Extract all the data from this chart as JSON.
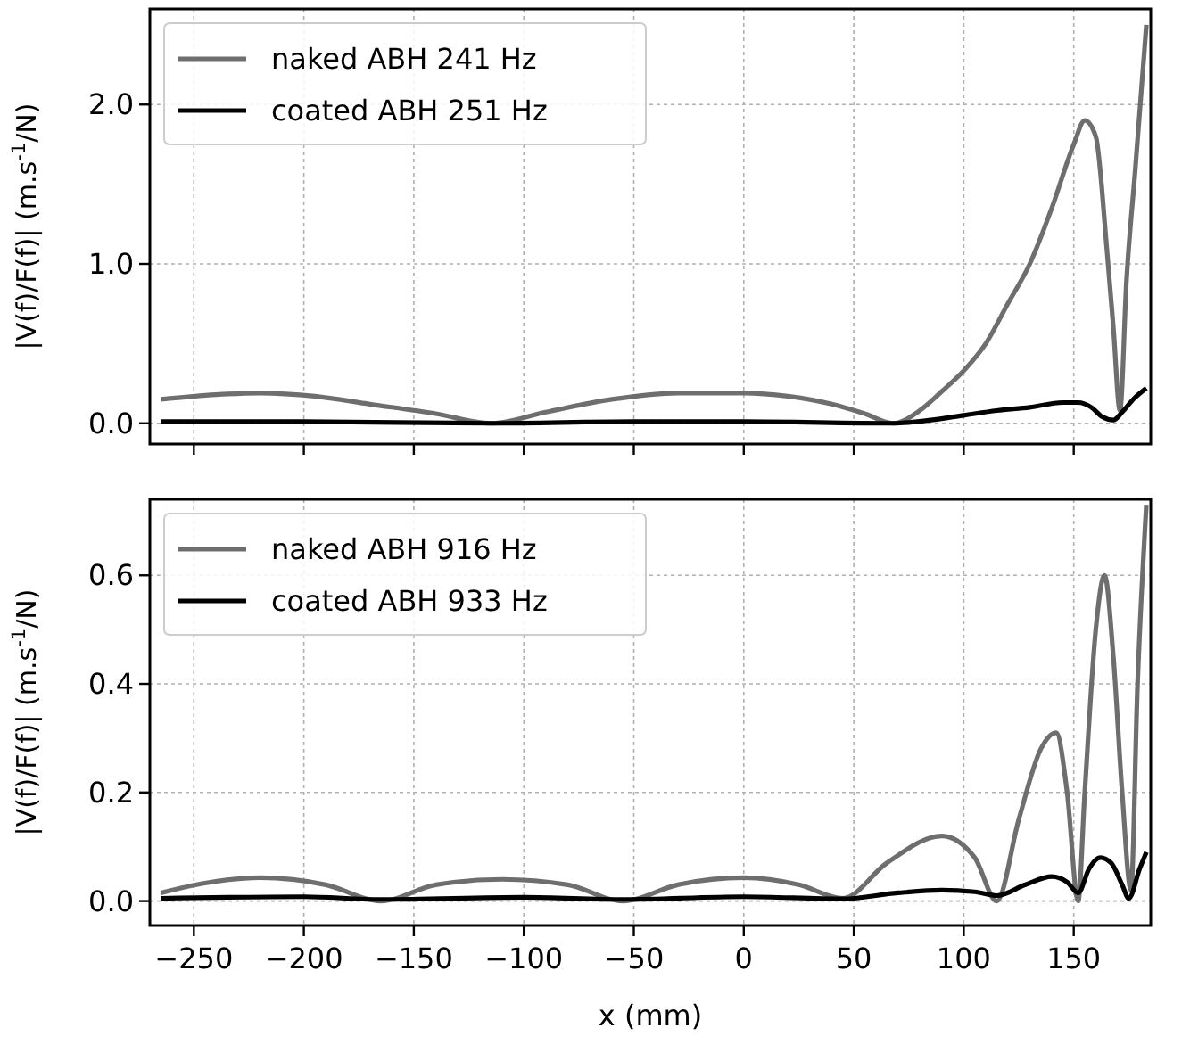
{
  "chart_data": [
    {
      "type": "line",
      "ylabel": "|V(f)/F(f)| (m.s$^{-1}$/N)",
      "xlim": [
        -270,
        185
      ],
      "ylim": [
        -0.13,
        2.6
      ],
      "xticks": [
        {
          "value": -250,
          "label": null
        },
        {
          "value": -200,
          "label": null
        },
        {
          "value": -150,
          "label": null
        },
        {
          "value": -100,
          "label": null
        },
        {
          "value": -50,
          "label": null
        },
        {
          "value": 0,
          "label": null
        },
        {
          "value": 50,
          "label": null
        },
        {
          "value": 100,
          "label": null
        },
        {
          "value": 150,
          "label": null
        }
      ],
      "yticks": [
        {
          "value": 0,
          "label": "0.0"
        },
        {
          "value": 1,
          "label": "1.0"
        },
        {
          "value": 2,
          "label": "2.0"
        }
      ],
      "tick_labels": "y",
      "grid": true,
      "legend": "top left",
      "line_style": "solid",
      "marker": "none",
      "series": [
        {
          "name": "naked ABH 241 Hz",
          "color": "#6e6e6e",
          "x": [
            -265,
            -240,
            -220,
            -195,
            -170,
            -140,
            -115,
            -90,
            -60,
            -30,
            0,
            20,
            40,
            55,
            68,
            80,
            90,
            100,
            110,
            120,
            130,
            140,
            150,
            155,
            160,
            165,
            168,
            171,
            174,
            178,
            183
          ],
          "values": [
            0.15,
            0.18,
            0.19,
            0.17,
            0.12,
            0.06,
            0.0,
            0.07,
            0.15,
            0.19,
            0.19,
            0.17,
            0.12,
            0.06,
            0.0,
            0.08,
            0.2,
            0.33,
            0.5,
            0.75,
            1.0,
            1.35,
            1.75,
            1.9,
            1.8,
            1.1,
            0.6,
            0.08,
            0.9,
            1.6,
            2.5
          ]
        },
        {
          "name": "coated ABH 251 Hz",
          "color": "#000000",
          "x": [
            -265,
            -200,
            -115,
            -50,
            0,
            68,
            85,
            100,
            115,
            130,
            145,
            152,
            158,
            163,
            168,
            172,
            177,
            183
          ],
          "values": [
            0.01,
            0.01,
            0.0,
            0.01,
            0.01,
            0.0,
            0.02,
            0.05,
            0.08,
            0.1,
            0.13,
            0.13,
            0.1,
            0.04,
            0.02,
            0.07,
            0.15,
            0.22
          ]
        }
      ]
    },
    {
      "type": "line",
      "xlabel": "x (mm)",
      "ylabel": "|V(f)/F(f)| (m.s$^{-1}$/N)",
      "xlim": [
        -270,
        185
      ],
      "ylim": [
        -0.045,
        0.74
      ],
      "xticks": [
        {
          "value": -250,
          "label": "−250"
        },
        {
          "value": -200,
          "label": "−200"
        },
        {
          "value": -150,
          "label": "−150"
        },
        {
          "value": -100,
          "label": "−100"
        },
        {
          "value": -50,
          "label": "−50"
        },
        {
          "value": 0,
          "label": "0"
        },
        {
          "value": 50,
          "label": "50"
        },
        {
          "value": 100,
          "label": "100"
        },
        {
          "value": 150,
          "label": "150"
        }
      ],
      "yticks": [
        {
          "value": 0,
          "label": "0.0"
        },
        {
          "value": 0.2,
          "label": "0.2"
        },
        {
          "value": 0.4,
          "label": "0.4"
        },
        {
          "value": 0.6,
          "label": "0.6"
        }
      ],
      "grid": true,
      "legend": "top left",
      "line_style": "solid",
      "marker": "none",
      "series": [
        {
          "name": "naked ABH 916 Hz",
          "color": "#6e6e6e",
          "x": [
            -265,
            -245,
            -220,
            -190,
            -165,
            -140,
            -110,
            -80,
            -55,
            -30,
            0,
            25,
            45,
            65,
            90,
            105,
            115,
            125,
            135,
            142,
            147,
            152,
            155,
            160,
            164,
            168,
            172,
            176,
            179,
            183
          ],
          "values": [
            0.015,
            0.033,
            0.043,
            0.03,
            0.0,
            0.03,
            0.04,
            0.03,
            0.0,
            0.03,
            0.043,
            0.03,
            0.005,
            0.07,
            0.12,
            0.08,
            0.0,
            0.15,
            0.28,
            0.31,
            0.2,
            0.0,
            0.2,
            0.5,
            0.6,
            0.45,
            0.2,
            0.02,
            0.4,
            0.73
          ]
        },
        {
          "name": "coated ABH 933 Hz",
          "color": "#000000",
          "x": [
            -265,
            -200,
            -165,
            -100,
            -55,
            0,
            45,
            70,
            90,
            105,
            115,
            128,
            140,
            147,
            152,
            157,
            162,
            167,
            172,
            175,
            180,
            183
          ],
          "values": [
            0.005,
            0.008,
            0.003,
            0.007,
            0.003,
            0.008,
            0.004,
            0.015,
            0.02,
            0.017,
            0.01,
            0.03,
            0.045,
            0.035,
            0.015,
            0.06,
            0.08,
            0.07,
            0.03,
            0.005,
            0.06,
            0.09
          ]
        }
      ]
    }
  ]
}
